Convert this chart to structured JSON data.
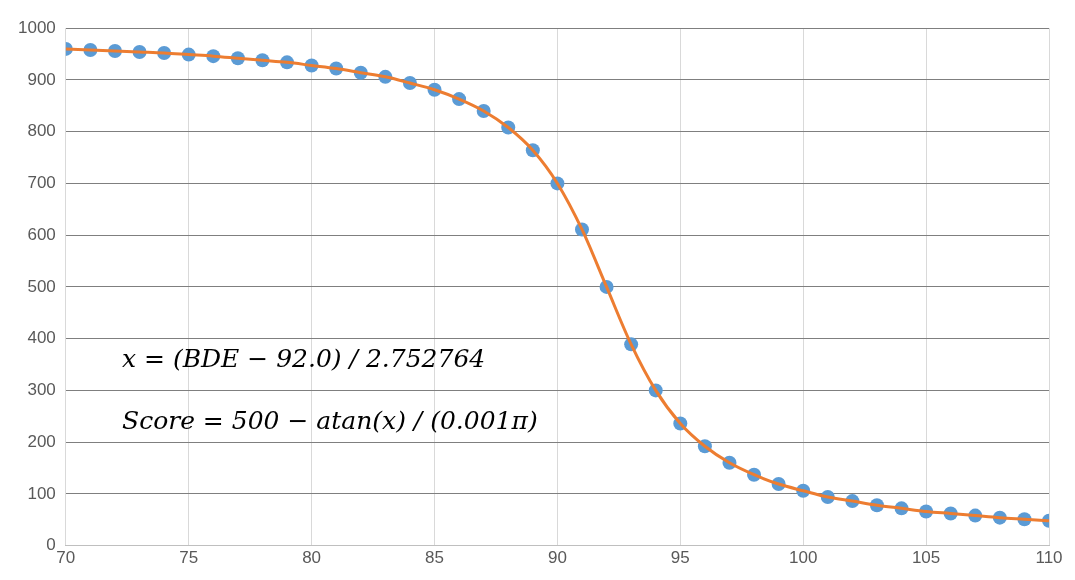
{
  "chart_data": {
    "type": "scatter",
    "x": [
      70,
      71,
      72,
      73,
      74,
      75,
      76,
      77,
      78,
      79,
      80,
      81,
      82,
      83,
      84,
      85,
      86,
      87,
      88,
      89,
      90,
      91,
      92,
      93,
      94,
      95,
      96,
      97,
      98,
      99,
      100,
      101,
      102,
      103,
      104,
      105,
      106,
      107,
      108,
      109,
      110
    ],
    "series": [
      {
        "type": "line",
        "color": "#ed7d31",
        "marker": "none",
        "line_style": "solid",
        "values": [
          960,
          958,
          956,
          954,
          952,
          949,
          946,
          942,
          938,
          934,
          928,
          922,
          914,
          906,
          894,
          881,
          863,
          840,
          808,
          764,
          700,
          611,
          500,
          389,
          300,
          236,
          192,
          160,
          137,
          119,
          106,
          94,
          86,
          78,
          72,
          66,
          62,
          58,
          54,
          51,
          48
        ]
      },
      {
        "color": "#5b9bd5",
        "marker": "circle",
        "values": [
          960,
          958,
          956,
          954,
          952,
          949,
          946,
          942,
          938,
          934,
          928,
          922,
          914,
          906,
          894,
          881,
          863,
          840,
          808,
          764,
          700,
          611,
          500,
          389,
          300,
          236,
          192,
          160,
          137,
          119,
          106,
          94,
          86,
          78,
          72,
          66,
          62,
          58,
          54,
          51,
          48
        ]
      }
    ],
    "xlim": [
      70,
      110
    ],
    "xticks": [
      70,
      75,
      80,
      85,
      90,
      95,
      100,
      105,
      110
    ],
    "ylim": [
      0,
      1000
    ],
    "yticks": [
      0,
      100,
      200,
      300,
      400,
      500,
      600,
      700,
      800,
      900,
      1000
    ],
    "grid": true,
    "legend": false,
    "annotations": [
      "x = (BDE − 92.0) / 2.752764",
      "Score = 500 − atan(x) / (0.001π)"
    ]
  }
}
